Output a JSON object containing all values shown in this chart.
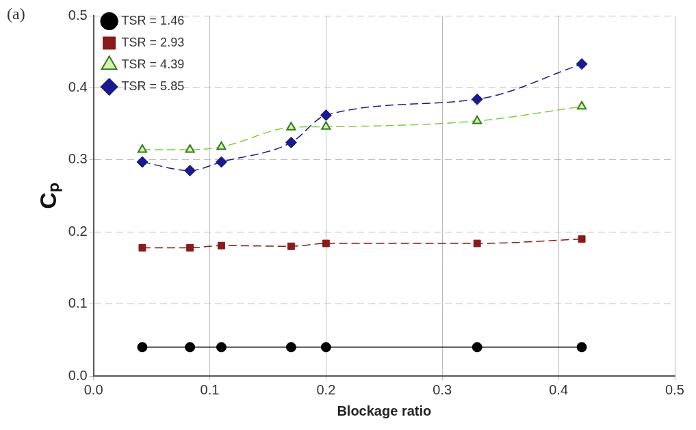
{
  "chart_data": {
    "type": "line",
    "xlabel": "Blockage ratio",
    "ylabel": "Cₚ",
    "annotations": [
      "(a)"
    ],
    "x": [
      0.042,
      0.083,
      0.11,
      0.17,
      0.2,
      0.33,
      0.42
    ],
    "series": [
      {
        "name": "TSR = 1.46",
        "color": "#000000",
        "marker": "circle",
        "line_style": "solid",
        "values": [
          0.04,
          0.04,
          0.04,
          0.04,
          0.04,
          0.04,
          0.04
        ]
      },
      {
        "name": "TSR = 2.93",
        "color": "#8b1a1a",
        "marker": "square",
        "line_style": "dashed",
        "values": [
          0.178,
          0.178,
          0.181,
          0.18,
          0.184,
          0.184,
          0.19
        ]
      },
      {
        "name": "TSR = 4.39",
        "color": "#7ccd3c",
        "marker": "triangle",
        "line_style": "dashed",
        "values": [
          0.314,
          0.314,
          0.318,
          0.345,
          0.346,
          0.354,
          0.374
        ]
      },
      {
        "name": "TSR = 5.85",
        "color": "#1a1a8c",
        "marker": "diamond",
        "line_style": "dashed",
        "values": [
          0.297,
          0.285,
          0.297,
          0.324,
          0.362,
          0.384,
          0.433
        ]
      }
    ],
    "xlim": [
      0,
      0.5
    ],
    "xticks": [
      {
        "value": 0,
        "label": "0.0"
      },
      0.1,
      0.2,
      0.3,
      0.4,
      0.5
    ],
    "ylim": [
      0,
      0.5
    ],
    "yticks": [
      {
        "value": 0,
        "label": "0.0"
      },
      0.1,
      0.2,
      0.3,
      0.4,
      0.5
    ],
    "grid": true,
    "legend": "top left"
  }
}
